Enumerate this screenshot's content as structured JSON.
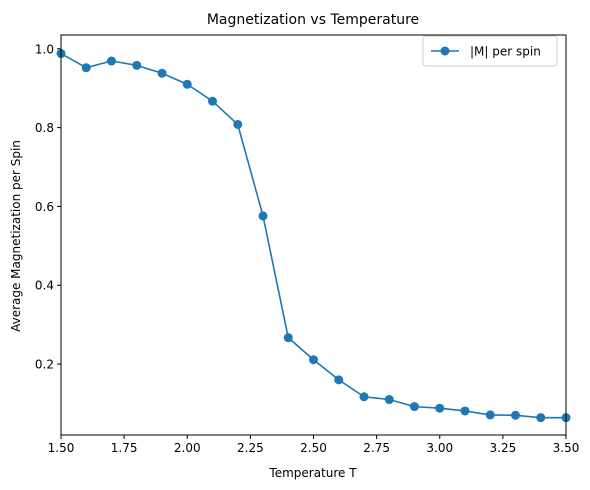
{
  "chart_data": {
    "type": "line",
    "title": "Magnetization vs Temperature",
    "xlabel": "Temperature T",
    "ylabel": "Average Magnetization per Spin",
    "xlim": [
      1.5,
      3.5
    ],
    "ylim": [
      0.02,
      1.035
    ],
    "xticks": [
      "1.50",
      "1.75",
      "2.00",
      "2.25",
      "2.50",
      "2.75",
      "3.00",
      "3.25",
      "3.50"
    ],
    "xtick_values": [
      1.5,
      1.75,
      2.0,
      2.25,
      2.5,
      2.75,
      3.0,
      3.25,
      3.5
    ],
    "yticks": [
      "0.2",
      "0.4",
      "0.6",
      "0.8",
      "1.0"
    ],
    "ytick_values": [
      0.2,
      0.4,
      0.6,
      0.8,
      1.0
    ],
    "grid": false,
    "legend_position": "top-right",
    "series": [
      {
        "name": "|M| per spin",
        "color": "#1f77b4",
        "marker": "circle",
        "x": [
          1.5,
          1.6,
          1.7,
          1.8,
          1.9,
          2.0,
          2.1,
          2.2,
          2.3,
          2.4,
          2.5,
          2.6,
          2.7,
          2.8,
          2.9,
          3.0,
          3.1,
          3.2,
          3.3,
          3.4,
          3.5
        ],
        "y": [
          0.988,
          0.952,
          0.969,
          0.958,
          0.938,
          0.91,
          0.867,
          0.808,
          0.576,
          0.267,
          0.211,
          0.16,
          0.117,
          0.11,
          0.092,
          0.088,
          0.081,
          0.071,
          0.07,
          0.064,
          0.064
        ]
      }
    ]
  }
}
